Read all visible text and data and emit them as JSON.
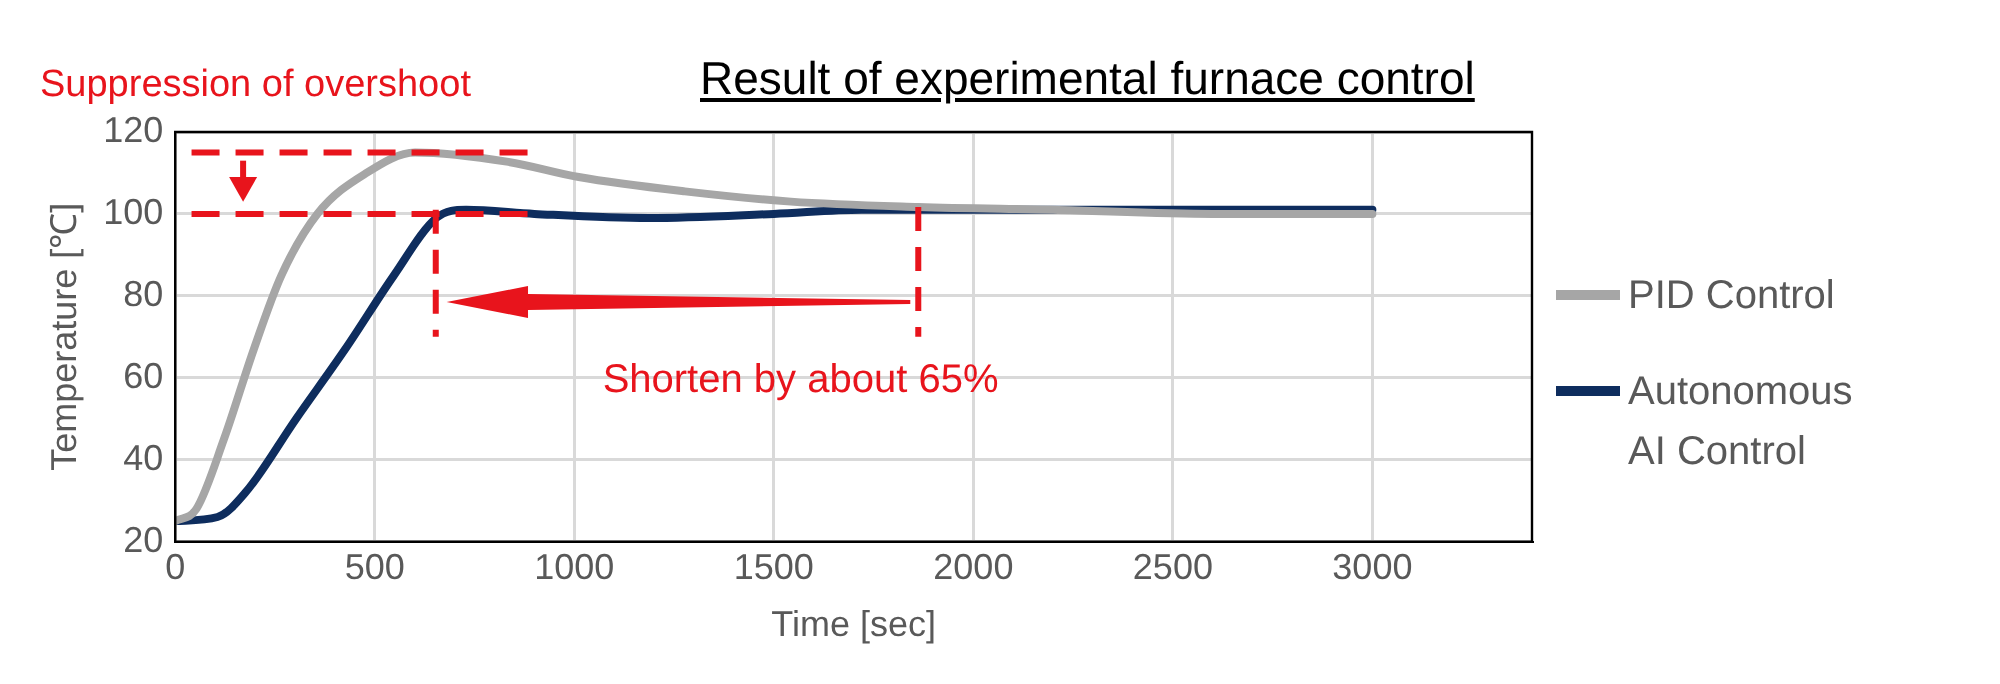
{
  "chart_data": {
    "type": "line",
    "title": "Result of experimental furnace control",
    "xlabel": "Time [sec]",
    "ylabel": "Temperature [℃]",
    "annotations": [
      "Suppression of overshoot",
      {
        "text": "Shorten by about 65%",
        "x": 1862,
        "y": 101.7
      }
    ],
    "xlim": [
      0,
      3400
    ],
    "xticks": [
      0,
      500,
      1000,
      1500,
      2000,
      2500,
      3000
    ],
    "ylim": [
      20,
      120
    ],
    "yticks": [
      20,
      40,
      60,
      80,
      100,
      120
    ],
    "grid": true,
    "legend": "right",
    "marker": "none",
    "line_style": "solid",
    "series": [
      {
        "name": "PID Control",
        "color": "#a6a6a6",
        "x": [
          0,
          53,
          122,
          197,
          266,
          356,
          479,
          601,
          835,
          1011,
          1277,
          1543,
          1862,
          2200,
          2600,
          3000
        ],
        "values": [
          25,
          28,
          45,
          67,
          85,
          100,
          110,
          115,
          112.7,
          109,
          105.5,
          103,
          101.7,
          101,
          100,
          100
        ]
      },
      {
        "name": "Autonomous AI Control",
        "color": "#0e2d5e",
        "x": [
          0,
          106,
          176,
          303,
          426,
          548,
          654,
          729,
          900,
          1186,
          1500,
          1720,
          2000,
          2500,
          3000
        ],
        "values": [
          25,
          26,
          32,
          50,
          67,
          85,
          99,
          101,
          100,
          99,
          100,
          101,
          101,
          101,
          101
        ]
      }
    ]
  }
}
